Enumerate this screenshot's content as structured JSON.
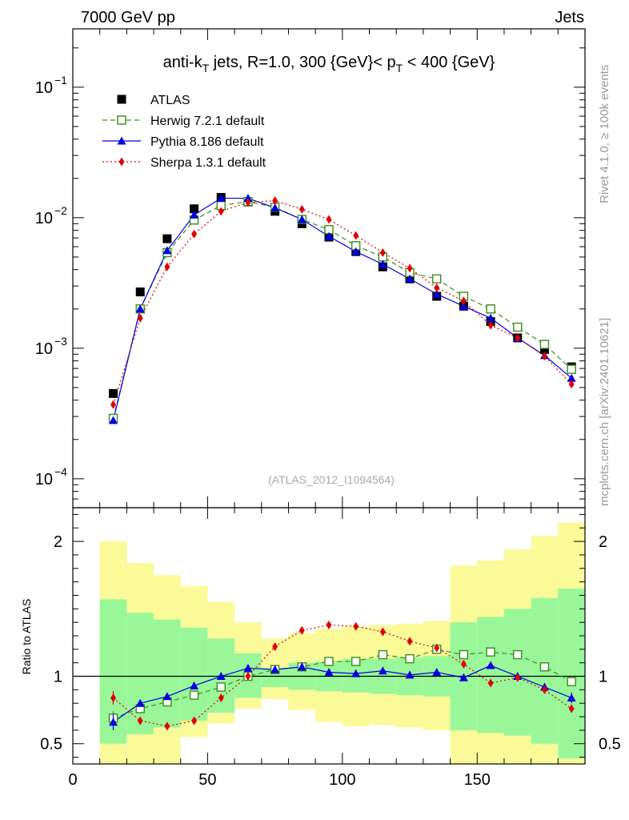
{
  "header": {
    "left": "7000 GeV pp",
    "right": "Jets"
  },
  "side_labels": {
    "rivet": "Rivet 4.1.0, ≥ 100k events",
    "mcplots": "mcplots.cern.ch [arXiv:2401.10621]"
  },
  "chart_data": [
    {
      "type": "scatter",
      "panel": "main",
      "title_parts": {
        "pre": "anti-k",
        "sub1": "T",
        "mid": " jets, R=1.0, 300 {GeV}< p",
        "sub2": "T",
        "post": " < 400 {GeV}"
      },
      "watermark": "(ATLAS_2012_I1094564)",
      "yscale": "log",
      "ylim": [
        6e-05,
        0.28
      ],
      "xlim": [
        0,
        190
      ],
      "ytick_labels": [
        {
          "value": 0.1,
          "base": "10",
          "exp": "−1"
        },
        {
          "value": 0.01,
          "base": "10",
          "exp": "−2"
        },
        {
          "value": 0.001,
          "base": "10",
          "exp": "−3"
        },
        {
          "value": 0.0001,
          "base": "10",
          "exp": "−4"
        }
      ],
      "x": [
        15,
        25,
        35,
        45,
        55,
        65,
        75,
        85,
        95,
        105,
        115,
        125,
        135,
        145,
        155,
        165,
        175,
        185
      ],
      "series": [
        {
          "name": "ATLAS",
          "color": "#000000",
          "marker": "filled-square",
          "line": "none",
          "values": [
            0.00045,
            0.0027,
            0.0069,
            0.0117,
            0.0143,
            0.0132,
            0.0112,
            0.009,
            0.0071,
            0.0055,
            0.0042,
            0.0034,
            0.0025,
            0.0021,
            0.0016,
            0.0012,
            0.00098,
            0.00072
          ]
        },
        {
          "name": "Herwig 7.2.1 default",
          "color": "#3a8c1c",
          "marker": "open-square",
          "line": "dashed",
          "values": [
            0.00029,
            0.002,
            0.0054,
            0.0096,
            0.0124,
            0.0133,
            0.012,
            0.0097,
            0.0081,
            0.0061,
            0.005,
            0.0038,
            0.0034,
            0.0025,
            0.002,
            0.00145,
            0.00107,
            0.00069
          ]
        },
        {
          "name": "Pythia 8.186 default",
          "color": "#0000e0",
          "marker": "filled-triangle",
          "line": "solid",
          "values": [
            0.00028,
            0.002,
            0.0056,
            0.0105,
            0.0141,
            0.0141,
            0.0119,
            0.0097,
            0.0072,
            0.0055,
            0.0044,
            0.0034,
            0.0026,
            0.0021,
            0.0017,
            0.0012,
            0.00088,
            0.00059
          ]
        },
        {
          "name": "Sherpa 1.3.1 default",
          "color": "#e00000",
          "marker": "filled-diamond",
          "line": "dotted",
          "values": [
            0.00037,
            0.0017,
            0.0042,
            0.0075,
            0.0112,
            0.0131,
            0.0135,
            0.0116,
            0.0097,
            0.0073,
            0.0054,
            0.0041,
            0.0029,
            0.0023,
            0.0015,
            0.0012,
            0.00087,
            0.00053
          ]
        }
      ]
    },
    {
      "type": "scatter",
      "panel": "ratio",
      "ylabel": "Ratio to ATLAS",
      "xlabel": "",
      "ylim": [
        0.35,
        2.25
      ],
      "xlim": [
        0,
        190
      ],
      "ytick_labels": [
        "2",
        "1",
        "0.5"
      ],
      "ytick_values": [
        2,
        1,
        0.5
      ],
      "xtick_labels": [
        "0",
        "50",
        "100",
        "150"
      ],
      "xtick_values": [
        0,
        50,
        100,
        150
      ],
      "bin_edges": [
        10,
        20,
        30,
        40,
        50,
        60,
        70,
        80,
        90,
        100,
        110,
        120,
        130,
        140,
        150,
        160,
        170,
        180,
        190
      ],
      "band_inner": {
        "color": "#99f799",
        "lo": [
          0.5,
          0.57,
          0.62,
          0.67,
          0.73,
          0.84,
          0.92,
          0.9,
          0.89,
          0.88,
          0.87,
          0.86,
          0.85,
          0.6,
          0.58,
          0.56,
          0.5,
          0.39
        ],
        "hi": [
          1.57,
          1.47,
          1.42,
          1.36,
          1.28,
          1.17,
          1.06,
          1.1,
          1.11,
          1.13,
          1.13,
          1.14,
          1.15,
          1.4,
          1.44,
          1.5,
          1.58,
          1.65
        ]
      },
      "band_outer": {
        "color": "#fafa99",
        "lo": [
          0.35,
          0.35,
          0.35,
          0.55,
          0.65,
          0.76,
          0.83,
          0.75,
          0.66,
          0.63,
          0.64,
          0.62,
          0.6,
          0.35,
          0.35,
          0.35,
          0.35,
          0.35
        ],
        "hi": [
          2.0,
          1.84,
          1.75,
          1.67,
          1.55,
          1.4,
          1.28,
          1.32,
          1.35,
          1.37,
          1.38,
          1.39,
          1.41,
          1.82,
          1.86,
          1.94,
          2.04,
          2.14
        ]
      },
      "x": [
        15,
        25,
        35,
        45,
        55,
        65,
        75,
        85,
        95,
        105,
        115,
        125,
        135,
        145,
        155,
        165,
        175,
        185
      ],
      "series": [
        {
          "name": "Herwig 7.2.1 default",
          "color": "#3a8c1c",
          "marker": "open-square",
          "line": "dashed",
          "values": [
            0.69,
            0.76,
            0.81,
            0.86,
            0.92,
            1.0,
            1.05,
            1.07,
            1.11,
            1.11,
            1.16,
            1.13,
            1.2,
            1.16,
            1.18,
            1.16,
            1.07,
            0.96
          ],
          "err": [
            0.05,
            0.02,
            0.02,
            0.01,
            0.01,
            0.01,
            0.01,
            0.01,
            0.01,
            0.01,
            0.01,
            0.01,
            0.01,
            0.01,
            0.01,
            0.01,
            0.02,
            0.03
          ]
        },
        {
          "name": "Pythia 8.186 default",
          "color": "#0000e0",
          "marker": "filled-triangle",
          "line": "solid",
          "values": [
            0.66,
            0.8,
            0.85,
            0.93,
            1.0,
            1.06,
            1.05,
            1.07,
            1.03,
            1.02,
            1.04,
            1.01,
            1.03,
            0.99,
            1.08,
            1.0,
            0.92,
            0.84
          ],
          "err": [
            0.06,
            0.02,
            0.02,
            0.01,
            0.01,
            0.01,
            0.01,
            0.01,
            0.01,
            0.01,
            0.01,
            0.01,
            0.01,
            0.01,
            0.02,
            0.02,
            0.03,
            0.04
          ]
        },
        {
          "name": "Sherpa 1.3.1 default",
          "color": "#e00000",
          "marker": "filled-diamond",
          "line": "dotted",
          "values": [
            0.84,
            0.67,
            0.63,
            0.67,
            0.84,
            1.0,
            1.22,
            1.34,
            1.38,
            1.37,
            1.33,
            1.26,
            1.21,
            1.09,
            0.95,
            0.99,
            0.9,
            0.76
          ],
          "err": [
            0.05,
            0.02,
            0.01,
            0.01,
            0.01,
            0.01,
            0.01,
            0.01,
            0.01,
            0.01,
            0.01,
            0.01,
            0.01,
            0.01,
            0.02,
            0.02,
            0.02,
            0.03
          ]
        }
      ]
    }
  ]
}
